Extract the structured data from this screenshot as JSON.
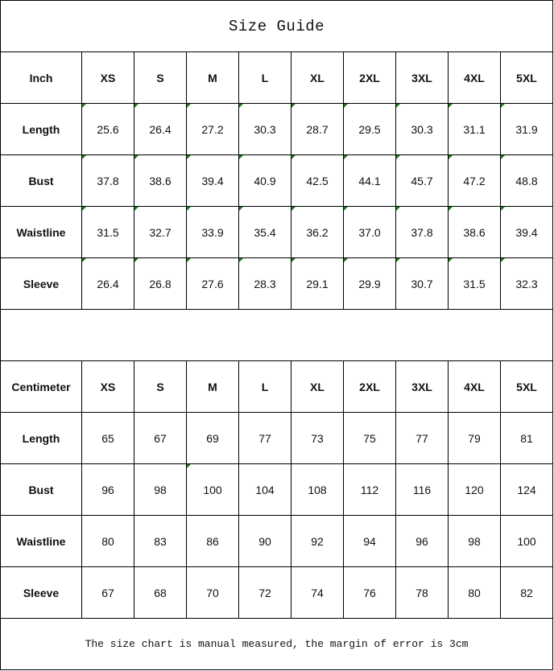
{
  "title": "Size Guide",
  "sizes": [
    "XS",
    "S",
    "M",
    "L",
    "XL",
    "2XL",
    "3XL",
    "4XL",
    "5XL"
  ],
  "inch": {
    "unit_label": "Inch",
    "rows": [
      {
        "label": "Length",
        "values": [
          "25.6",
          "26.4",
          "27.2",
          "30.3",
          "28.7",
          "29.5",
          "30.3",
          "31.1",
          "31.9"
        ]
      },
      {
        "label": "Bust",
        "values": [
          "37.8",
          "38.6",
          "39.4",
          "40.9",
          "42.5",
          "44.1",
          "45.7",
          "47.2",
          "48.8"
        ]
      },
      {
        "label": "Waistline",
        "values": [
          "31.5",
          "32.7",
          "33.9",
          "35.4",
          "36.2",
          "37.0",
          "37.8",
          "38.6",
          "39.4"
        ]
      },
      {
        "label": "Sleeve",
        "values": [
          "26.4",
          "26.8",
          "27.6",
          "28.3",
          "29.1",
          "29.9",
          "30.7",
          "31.5",
          "32.3"
        ]
      }
    ]
  },
  "centimeter": {
    "unit_label": "Centimeter",
    "rows": [
      {
        "label": "Length",
        "values": [
          "65",
          "67",
          "69",
          "77",
          "73",
          "75",
          "77",
          "79",
          "81"
        ]
      },
      {
        "label": "Bust",
        "values": [
          "96",
          "98",
          "100",
          "104",
          "108",
          "112",
          "116",
          "120",
          "124"
        ]
      },
      {
        "label": "Waistline",
        "values": [
          "80",
          "83",
          "86",
          "90",
          "92",
          "94",
          "96",
          "98",
          "100"
        ]
      },
      {
        "label": "Sleeve",
        "values": [
          "67",
          "68",
          "70",
          "72",
          "74",
          "76",
          "78",
          "80",
          "82"
        ]
      }
    ]
  },
  "note": "The size chart is manual measured, the margin of error is 3cm",
  "indicator_color": "#1a7a1a"
}
